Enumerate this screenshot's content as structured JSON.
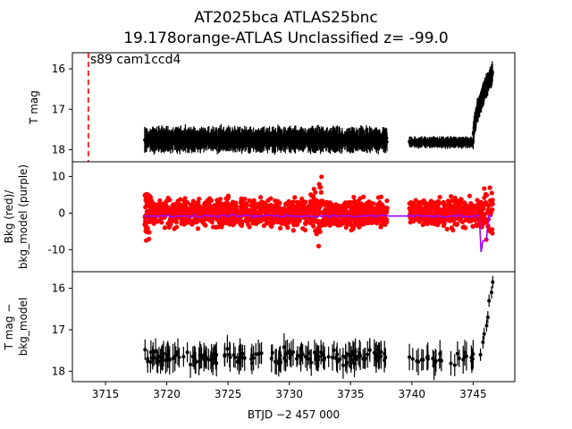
{
  "figure": {
    "title_line1": "AT2025bca  ATLAS25bnc",
    "title_line2": "19.178orange-ATLAS Unclassified z= -99.0"
  },
  "colors": {
    "data": "#000000",
    "bkg_points": "#ff0000",
    "bkg_model": "#9900ff",
    "marker_line": "#ff0000"
  },
  "chart_data": [
    {
      "type": "scatter",
      "panel": "top",
      "ylabel": "T mag",
      "ylim": [
        18.3,
        15.6
      ],
      "yticks": [
        16,
        17,
        18
      ],
      "xlim": [
        3712.3,
        3748.4
      ],
      "annotation": "s89 cam1ccd4",
      "marker_x": 3713.6,
      "series": [
        {
          "segments": [
            {
              "x0": 3718.2,
              "x1": 3738.0,
              "mag": 17.75,
              "scatter": 0.18
            },
            {
              "x0": 3739.8,
              "x1": 3745.0,
              "mag": 17.82,
              "scatter": 0.08
            }
          ],
          "rise": {
            "x0": 3745.0,
            "x1": 3746.6,
            "mag_start": 17.8,
            "mag_end": 16.1
          }
        }
      ]
    },
    {
      "type": "scatter",
      "panel": "middle",
      "ylabel": "Bkg (red)/\nbkg_model (purple)",
      "ylim": [
        -16,
        14
      ],
      "yticks": [
        10,
        0,
        -10
      ],
      "xlim": [
        3712.3,
        3748.4
      ],
      "series": [
        {
          "name": "Bkg (red)",
          "segments": [
            {
              "x0": 3718.2,
              "x1": 3738.0,
              "center": 0,
              "spread": 6
            },
            {
              "x0": 3739.8,
              "x1": 3746.6,
              "center": 0,
              "spread": 6
            }
          ]
        },
        {
          "name": "bkg_model (purple)",
          "model_level": -0.8
        }
      ]
    },
    {
      "type": "scatter",
      "panel": "bottom",
      "ylabel": "T mag −\nbkg_model",
      "ylim": [
        18.25,
        15.6
      ],
      "yticks": [
        16,
        17,
        18
      ],
      "xlim": [
        3712.3,
        3748.4
      ],
      "xticks": [
        3715,
        3720,
        3725,
        3730,
        3735,
        3740,
        3745
      ],
      "xlabel": "BTJD −2 457 000",
      "series": [
        {
          "segments": [
            {
              "x0": 3718.2,
              "x1": 3738.0,
              "mag": 17.65,
              "scatter": 0.25
            },
            {
              "x0": 3739.8,
              "x1": 3745.4,
              "mag": 17.7,
              "scatter": 0.2
            }
          ],
          "rise_points": [
            {
              "x": 3745.6,
              "y": 17.6
            },
            {
              "x": 3745.8,
              "y": 17.3
            },
            {
              "x": 3745.9,
              "y": 17.1
            },
            {
              "x": 3746.1,
              "y": 16.9
            },
            {
              "x": 3746.2,
              "y": 16.7
            },
            {
              "x": 3746.3,
              "y": 16.3
            },
            {
              "x": 3746.5,
              "y": 16.1
            },
            {
              "x": 3746.6,
              "y": 15.85
            }
          ]
        }
      ]
    }
  ]
}
